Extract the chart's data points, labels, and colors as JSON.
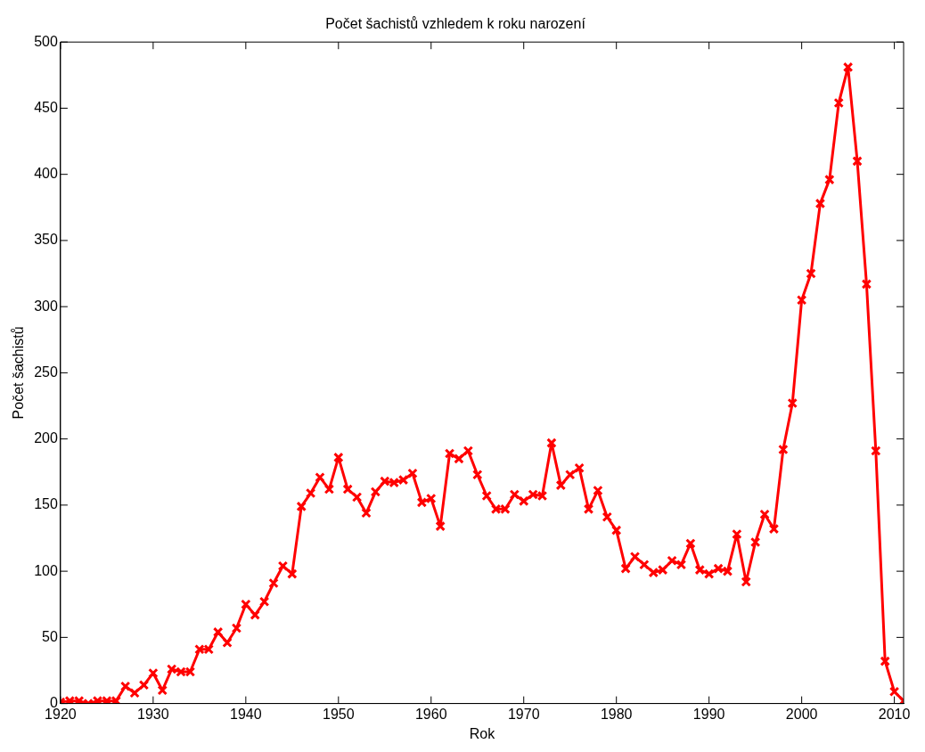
{
  "chart_data": {
    "type": "line",
    "title": "Počet šachistů vzhledem k roku narození",
    "xlabel": "Rok",
    "ylabel": "Počet šachistů",
    "x": [
      1920,
      1921,
      1922,
      1923,
      1924,
      1925,
      1926,
      1927,
      1928,
      1929,
      1930,
      1931,
      1932,
      1933,
      1934,
      1935,
      1936,
      1937,
      1938,
      1939,
      1940,
      1941,
      1942,
      1943,
      1944,
      1945,
      1946,
      1947,
      1948,
      1949,
      1950,
      1951,
      1952,
      1953,
      1954,
      1955,
      1956,
      1957,
      1958,
      1959,
      1960,
      1961,
      1962,
      1963,
      1964,
      1965,
      1966,
      1967,
      1968,
      1969,
      1970,
      1971,
      1972,
      1973,
      1974,
      1975,
      1976,
      1977,
      1978,
      1979,
      1980,
      1981,
      1982,
      1983,
      1984,
      1985,
      1986,
      1987,
      1988,
      1989,
      1990,
      1991,
      1992,
      1993,
      1994,
      1995,
      1996,
      1997,
      1998,
      1999,
      2000,
      2001,
      2002,
      2003,
      2004,
      2005,
      2006,
      2007,
      2008,
      2009,
      2010,
      2011
    ],
    "series": [
      {
        "color": "#ff0000",
        "values": [
          1,
          2,
          2,
          0,
          2,
          2,
          2,
          13,
          8,
          14,
          23,
          10,
          26,
          24,
          24,
          41,
          41,
          54,
          46,
          57,
          75,
          67,
          77,
          91,
          104,
          98,
          149,
          159,
          171,
          162,
          186,
          162,
          156,
          144,
          160,
          168,
          167,
          169,
          174,
          152,
          155,
          134,
          189,
          185,
          191,
          173,
          157,
          147,
          147,
          158,
          153,
          158,
          157,
          197,
          165,
          173,
          178,
          147,
          161,
          141,
          131,
          102,
          111,
          105,
          99,
          101,
          108,
          105,
          121,
          101,
          98,
          102,
          100,
          128,
          92,
          122,
          143,
          132,
          192,
          227,
          305,
          325,
          378,
          396,
          454,
          481,
          410,
          317,
          191,
          32,
          9,
          2
        ]
      }
    ],
    "xlim": [
      1920,
      2011
    ],
    "xticks": [
      1920,
      1930,
      1940,
      1950,
      1960,
      1970,
      1980,
      1990,
      2000,
      2010
    ],
    "ylim": [
      0,
      500
    ],
    "yticks": [
      0,
      50,
      100,
      150,
      200,
      250,
      300,
      350,
      400,
      450,
      500
    ],
    "grid": false,
    "legend": false,
    "marker": "cross",
    "line_style": "solid"
  }
}
